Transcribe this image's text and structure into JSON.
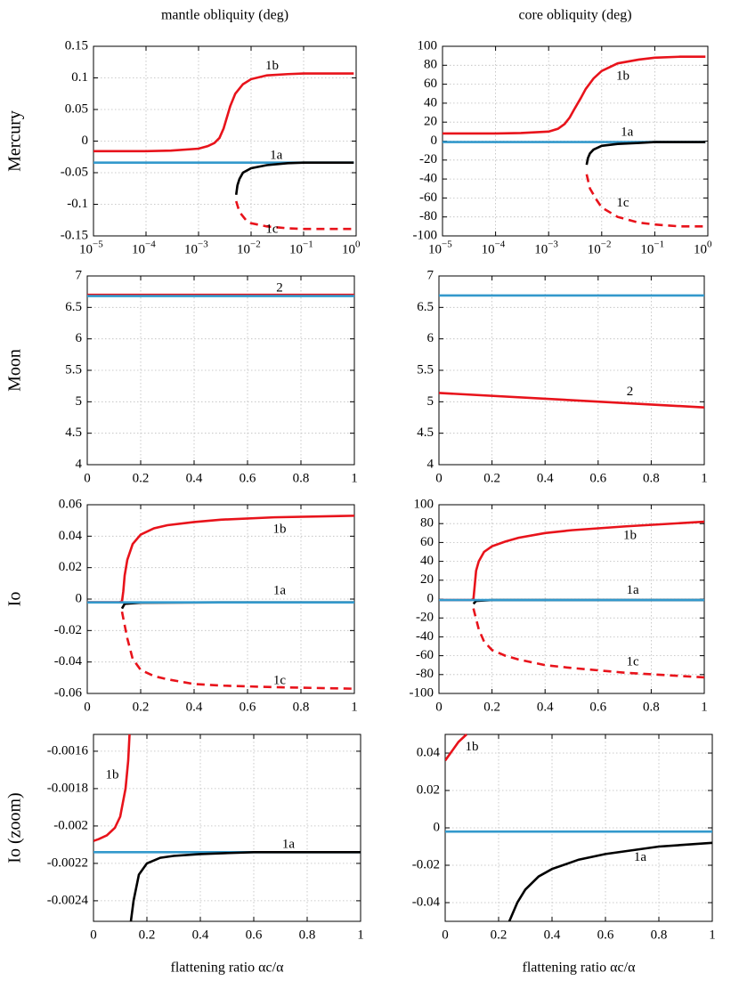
{
  "chart_data": [
    {
      "type": "line",
      "title": "mantle obliquity (deg)",
      "ylabel": "Mercury",
      "xscale": "log",
      "grid": true,
      "xlim": [
        1e-05,
        1
      ],
      "ylim": [
        -0.15,
        0.15
      ],
      "xticks": [
        {
          "value": 1e-05,
          "label": "10",
          "exponent": "−5"
        },
        {
          "value": 0.0001,
          "label": "10",
          "exponent": "−4"
        },
        {
          "value": 0.001,
          "label": "10",
          "exponent": "−3"
        },
        {
          "value": 0.01,
          "label": "10",
          "exponent": "−2"
        },
        {
          "value": 0.1,
          "label": "10",
          "exponent": "−1"
        },
        {
          "value": 1,
          "label": "10",
          "exponent": "0"
        }
      ],
      "yticks": [
        -0.15,
        -0.1,
        -0.05,
        0,
        0.05,
        0.1,
        0.15
      ],
      "series": [
        {
          "color": "#e8131b",
          "dashed": false,
          "x": [
            1e-05,
            0.0001,
            0.0003,
            0.001,
            0.0015,
            0.002,
            0.0025,
            0.003,
            0.004,
            0.005,
            0.007,
            0.01,
            0.02,
            0.05,
            0.1,
            0.3,
            0.9
          ],
          "values": [
            -0.016,
            -0.016,
            -0.015,
            -0.012,
            -0.008,
            -0.003,
            0.005,
            0.02,
            0.055,
            0.075,
            0.09,
            0.098,
            0.104,
            0.106,
            0.107,
            0.107,
            0.107
          ]
        },
        {
          "color": "#3399cc",
          "dashed": false,
          "x": [
            1e-05,
            0.9
          ],
          "values": [
            -0.034,
            -0.034
          ]
        },
        {
          "color": "#000000",
          "dashed": false,
          "x": [
            0.0052,
            0.0055,
            0.006,
            0.007,
            0.01,
            0.02,
            0.05,
            0.1,
            0.3,
            0.9
          ],
          "values": [
            -0.085,
            -0.07,
            -0.06,
            -0.05,
            -0.043,
            -0.038,
            -0.035,
            -0.034,
            -0.034,
            -0.034
          ]
        },
        {
          "color": "#e8131b",
          "dashed": true,
          "x": [
            0.0052,
            0.006,
            0.008,
            0.01,
            0.02,
            0.05,
            0.1,
            0.3,
            0.9
          ],
          "values": [
            -0.095,
            -0.112,
            -0.125,
            -0.13,
            -0.135,
            -0.138,
            -0.139,
            -0.139,
            -0.139
          ]
        }
      ],
      "annotations": [
        {
          "text": "1b",
          "x": 0.025,
          "y": 0.118,
          "color": "#e8131b"
        },
        {
          "text": "1a",
          "x": 0.03,
          "y": -0.023,
          "color": "#000000"
        },
        {
          "text": "1c",
          "x": 0.025,
          "y": -0.14,
          "color": "#e8131b"
        }
      ]
    },
    {
      "type": "line",
      "title": "core obliquity (deg)",
      "xscale": "log",
      "grid": true,
      "xlim": [
        1e-05,
        1
      ],
      "ylim": [
        -100,
        100
      ],
      "xticks": [
        {
          "value": 1e-05,
          "label": "10",
          "exponent": "−5"
        },
        {
          "value": 0.0001,
          "label": "10",
          "exponent": "−4"
        },
        {
          "value": 0.001,
          "label": "10",
          "exponent": "−3"
        },
        {
          "value": 0.01,
          "label": "10",
          "exponent": "−2"
        },
        {
          "value": 0.1,
          "label": "10",
          "exponent": "−1"
        },
        {
          "value": 1,
          "label": "10",
          "exponent": "0"
        }
      ],
      "yticks": [
        -100,
        -80,
        -60,
        -40,
        -20,
        0,
        20,
        40,
        60,
        80,
        100
      ],
      "series": [
        {
          "color": "#e8131b",
          "dashed": false,
          "x": [
            1e-05,
            0.0001,
            0.0003,
            0.001,
            0.0015,
            0.002,
            0.0025,
            0.003,
            0.004,
            0.005,
            0.007,
            0.01,
            0.02,
            0.05,
            0.1,
            0.3,
            0.9
          ],
          "values": [
            8,
            8,
            8.5,
            10,
            13,
            18,
            25,
            33,
            45,
            55,
            66,
            74,
            82,
            86,
            88,
            89,
            89
          ]
        },
        {
          "color": "#3399cc",
          "dashed": false,
          "x": [
            1e-05,
            0.9
          ],
          "values": [
            -1,
            -1
          ]
        },
        {
          "color": "#000000",
          "dashed": false,
          "x": [
            0.0052,
            0.0055,
            0.006,
            0.007,
            0.01,
            0.02,
            0.05,
            0.1,
            0.3,
            0.9
          ],
          "values": [
            -25,
            -18,
            -13,
            -9,
            -5,
            -3,
            -2,
            -1,
            -1,
            -1
          ]
        },
        {
          "color": "#e8131b",
          "dashed": true,
          "x": [
            0.0052,
            0.006,
            0.008,
            0.01,
            0.02,
            0.05,
            0.1,
            0.3,
            0.9
          ],
          "values": [
            -35,
            -50,
            -62,
            -70,
            -80,
            -86,
            -88,
            -90,
            -90
          ]
        }
      ],
      "annotations": [
        {
          "text": "1b",
          "x": 0.025,
          "y": 68,
          "color": "#e8131b"
        },
        {
          "text": "1a",
          "x": 0.03,
          "y": 9,
          "color": "#000000"
        },
        {
          "text": "1c",
          "x": 0.025,
          "y": -66,
          "color": "#e8131b"
        }
      ]
    },
    {
      "type": "line",
      "ylabel": "Moon",
      "grid": true,
      "xlim": [
        0,
        1
      ],
      "ylim": [
        4,
        7
      ],
      "xticks": [
        0,
        0.2,
        0.4,
        0.6,
        0.8,
        1
      ],
      "yticks": [
        4,
        4.5,
        5,
        5.5,
        6,
        6.5,
        7
      ],
      "series": [
        {
          "color": "#e8131b",
          "dashed": false,
          "x": [
            0,
            1
          ],
          "values": [
            6.7,
            6.7
          ]
        },
        {
          "color": "#3399cc",
          "dashed": false,
          "x": [
            0,
            1
          ],
          "values": [
            6.68,
            6.68
          ]
        }
      ],
      "annotations": [
        {
          "text": "2",
          "x": 0.72,
          "y": 6.8,
          "color": "#e8131b"
        }
      ]
    },
    {
      "type": "line",
      "grid": true,
      "xlim": [
        0,
        1
      ],
      "ylim": [
        4,
        7
      ],
      "xticks": [
        0,
        0.2,
        0.4,
        0.6,
        0.8,
        1
      ],
      "yticks": [
        4,
        4.5,
        5,
        5.5,
        6,
        6.5,
        7
      ],
      "series": [
        {
          "color": "#3399cc",
          "dashed": false,
          "x": [
            0,
            1
          ],
          "values": [
            6.69,
            6.69
          ]
        },
        {
          "color": "#e8131b",
          "dashed": false,
          "x": [
            0,
            1
          ],
          "values": [
            5.14,
            4.91
          ]
        }
      ],
      "annotations": [
        {
          "text": "2",
          "x": 0.72,
          "y": 5.15,
          "color": "#e8131b"
        }
      ]
    },
    {
      "type": "line",
      "ylabel": "Io",
      "grid": true,
      "xlim": [
        0,
        1
      ],
      "ylim": [
        -0.06,
        0.06
      ],
      "xticks": [
        0,
        0.2,
        0.4,
        0.6,
        0.8,
        1
      ],
      "yticks": [
        -0.06,
        -0.04,
        -0.02,
        0,
        0.02,
        0.04,
        0.06
      ],
      "series": [
        {
          "color": "#e8131b",
          "dashed": false,
          "x": [
            0,
            0.12,
            0.13,
            0.135,
            0.14,
            0.15,
            0.17,
            0.2,
            0.25,
            0.3,
            0.4,
            0.5,
            0.7,
            1
          ],
          "values": [
            -0.002,
            -0.002,
            -0.0015,
            0.005,
            0.015,
            0.025,
            0.035,
            0.041,
            0.045,
            0.047,
            0.049,
            0.0505,
            0.052,
            0.053
          ]
        },
        {
          "color": "#000000",
          "dashed": false,
          "x": [
            0.13,
            0.14,
            0.2,
            0.5,
            1
          ],
          "values": [
            -0.006,
            -0.003,
            -0.0023,
            -0.0021,
            -0.0021
          ]
        },
        {
          "color": "#3399cc",
          "dashed": false,
          "x": [
            0,
            1
          ],
          "values": [
            -0.0021,
            -0.0021
          ]
        },
        {
          "color": "#e8131b",
          "dashed": true,
          "x": [
            0.13,
            0.15,
            0.17,
            0.2,
            0.25,
            0.3,
            0.4,
            0.5,
            0.7,
            1
          ],
          "values": [
            -0.008,
            -0.025,
            -0.038,
            -0.045,
            -0.049,
            -0.051,
            -0.054,
            -0.055,
            -0.056,
            -0.057
          ]
        }
      ],
      "annotations": [
        {
          "text": "1b",
          "x": 0.72,
          "y": 0.044,
          "color": "#e8131b"
        },
        {
          "text": "1a",
          "x": 0.72,
          "y": 0.005,
          "color": "#000000"
        },
        {
          "text": "1c",
          "x": 0.72,
          "y": -0.052,
          "color": "#e8131b"
        }
      ]
    },
    {
      "type": "line",
      "grid": true,
      "xlim": [
        0,
        1
      ],
      "ylim": [
        -100,
        100
      ],
      "xticks": [
        0,
        0.2,
        0.4,
        0.6,
        0.8,
        1
      ],
      "yticks": [
        -100,
        -80,
        -60,
        -40,
        -20,
        0,
        20,
        40,
        60,
        80,
        100
      ],
      "series": [
        {
          "color": "#e8131b",
          "dashed": false,
          "x": [
            0,
            0.12,
            0.13,
            0.135,
            0.14,
            0.15,
            0.17,
            0.2,
            0.25,
            0.3,
            0.4,
            0.5,
            0.7,
            1
          ],
          "values": [
            -1,
            -1,
            0,
            15,
            30,
            40,
            50,
            56,
            61,
            65,
            70,
            73,
            77,
            82
          ]
        },
        {
          "color": "#000000",
          "dashed": false,
          "x": [
            0.13,
            0.14,
            0.2,
            0.5,
            1
          ],
          "values": [
            -5,
            -2,
            -1,
            -1,
            -1
          ]
        },
        {
          "color": "#3399cc",
          "dashed": false,
          "x": [
            0,
            1
          ],
          "values": [
            -1,
            -1
          ]
        },
        {
          "color": "#e8131b",
          "dashed": true,
          "x": [
            0.13,
            0.15,
            0.17,
            0.2,
            0.25,
            0.3,
            0.4,
            0.5,
            0.7,
            1
          ],
          "values": [
            -10,
            -32,
            -45,
            -54,
            -60,
            -64,
            -70,
            -73,
            -78,
            -83
          ]
        }
      ],
      "annotations": [
        {
          "text": "1b",
          "x": 0.72,
          "y": 67,
          "color": "#e8131b"
        },
        {
          "text": "1a",
          "x": 0.73,
          "y": 9,
          "color": "#000000"
        },
        {
          "text": "1c",
          "x": 0.73,
          "y": -67,
          "color": "#e8131b"
        }
      ]
    },
    {
      "type": "line",
      "ylabel": "Io (zoom)",
      "xlabel": "flattening ratio αc/α",
      "grid": true,
      "xlim": [
        0,
        1
      ],
      "ylim": [
        -0.00251,
        -0.00151
      ],
      "xticks": [
        0,
        0.2,
        0.4,
        0.6,
        0.8,
        1
      ],
      "yticks": [
        -0.0024,
        -0.0022,
        -0.002,
        -0.0018,
        -0.0016
      ],
      "series": [
        {
          "color": "#e8131b",
          "dashed": false,
          "x": [
            0,
            0.02,
            0.05,
            0.08,
            0.1,
            0.12,
            0.13,
            0.135
          ],
          "values": [
            -0.00208,
            -0.00207,
            -0.00205,
            -0.00201,
            -0.00195,
            -0.0018,
            -0.00165,
            -0.00151
          ]
        },
        {
          "color": "#3399cc",
          "dashed": false,
          "x": [
            0,
            1
          ],
          "values": [
            -0.00214,
            -0.00214
          ]
        },
        {
          "color": "#000000",
          "dashed": false,
          "x": [
            0.14,
            0.15,
            0.17,
            0.2,
            0.25,
            0.3,
            0.4,
            0.6,
            1
          ],
          "values": [
            -0.00251,
            -0.0024,
            -0.00226,
            -0.0022,
            -0.00217,
            -0.00216,
            -0.00215,
            -0.00214,
            -0.00214
          ]
        }
      ],
      "annotations": [
        {
          "text": "1b",
          "x": 0.07,
          "y": -0.00173,
          "color": "#e8131b"
        },
        {
          "text": "1a",
          "x": 0.73,
          "y": -0.0021,
          "color": "#000000"
        }
      ]
    },
    {
      "type": "line",
      "xlabel": "flattening ratio αc/α",
      "grid": true,
      "xlim": [
        0,
        1
      ],
      "ylim": [
        -0.05,
        0.05
      ],
      "xticks": [
        0,
        0.2,
        0.4,
        0.6,
        0.8,
        1
      ],
      "yticks": [
        -0.04,
        -0.02,
        0,
        0.02,
        0.04
      ],
      "series": [
        {
          "color": "#e8131b",
          "dashed": false,
          "x": [
            0,
            0.02,
            0.05,
            0.08
          ],
          "values": [
            0.036,
            0.04,
            0.046,
            0.05
          ]
        },
        {
          "color": "#3399cc",
          "dashed": false,
          "x": [
            0,
            1
          ],
          "values": [
            -0.002,
            -0.002
          ]
        },
        {
          "color": "#000000",
          "dashed": false,
          "x": [
            0.24,
            0.27,
            0.3,
            0.35,
            0.4,
            0.5,
            0.6,
            0.8,
            1
          ],
          "values": [
            -0.05,
            -0.04,
            -0.033,
            -0.026,
            -0.022,
            -0.017,
            -0.014,
            -0.01,
            -0.008
          ]
        }
      ],
      "annotations": [
        {
          "text": "1b",
          "x": 0.1,
          "y": 0.043,
          "color": "#e8131b"
        },
        {
          "text": "1a",
          "x": 0.73,
          "y": -0.016,
          "color": "#000000"
        }
      ]
    }
  ]
}
